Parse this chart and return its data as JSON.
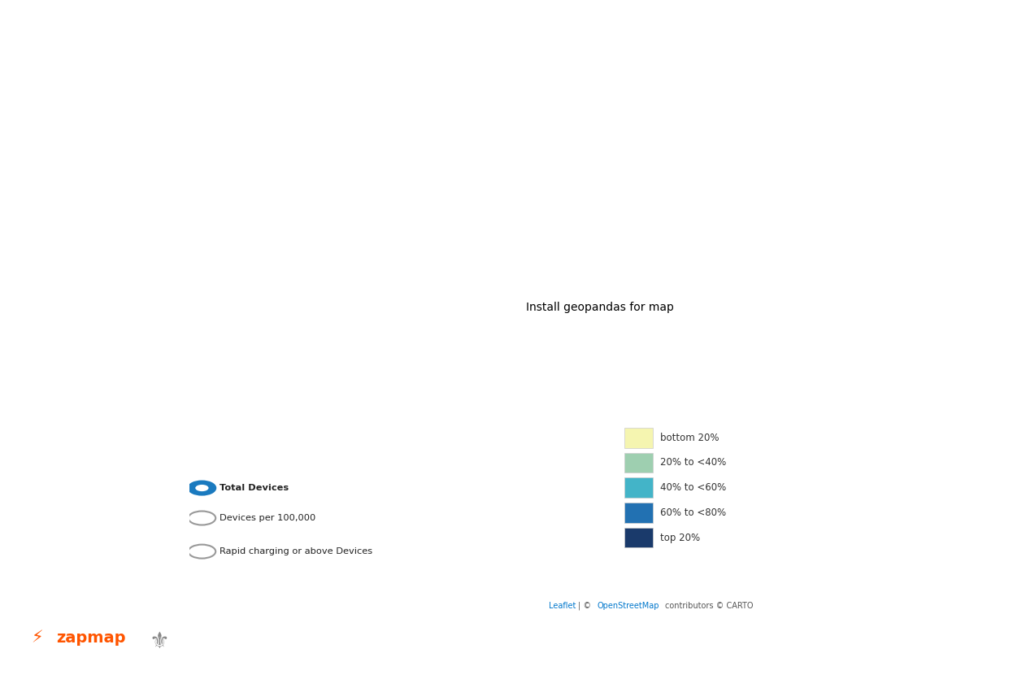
{
  "figure_bg": "#ffffff",
  "sea_color": "#c8d5d8",
  "ireland_color": "#f0f0f0",
  "continent_color": "#e8e0d8",
  "legend_colors": [
    "#f5f5b0",
    "#9ecfb0",
    "#43b4c8",
    "#2271b2",
    "#1a3a6b"
  ],
  "legend_labels": [
    "bottom 20%",
    "20% to <40%",
    "40% to <60%",
    "60% to <80%",
    "top 20%"
  ],
  "radio_options": [
    "Total Devices",
    "Devices per 100,000",
    "Rapid charging or above Devices"
  ],
  "radio_selected": 0,
  "radio_selected_color": "#1a7abf",
  "attribution": "Leaflet | © OpenStreetMap contributors © CARTO",
  "attribution_leaflet_color": "#0077cc",
  "attribution_osm_color": "#0077cc",
  "attribution_color": "#555555",
  "zapmap_orange": "#ff5500",
  "panel_border_color": "#cccccc",
  "panel_bg": "#ffffff",
  "panel_shadow": "#dddddd"
}
